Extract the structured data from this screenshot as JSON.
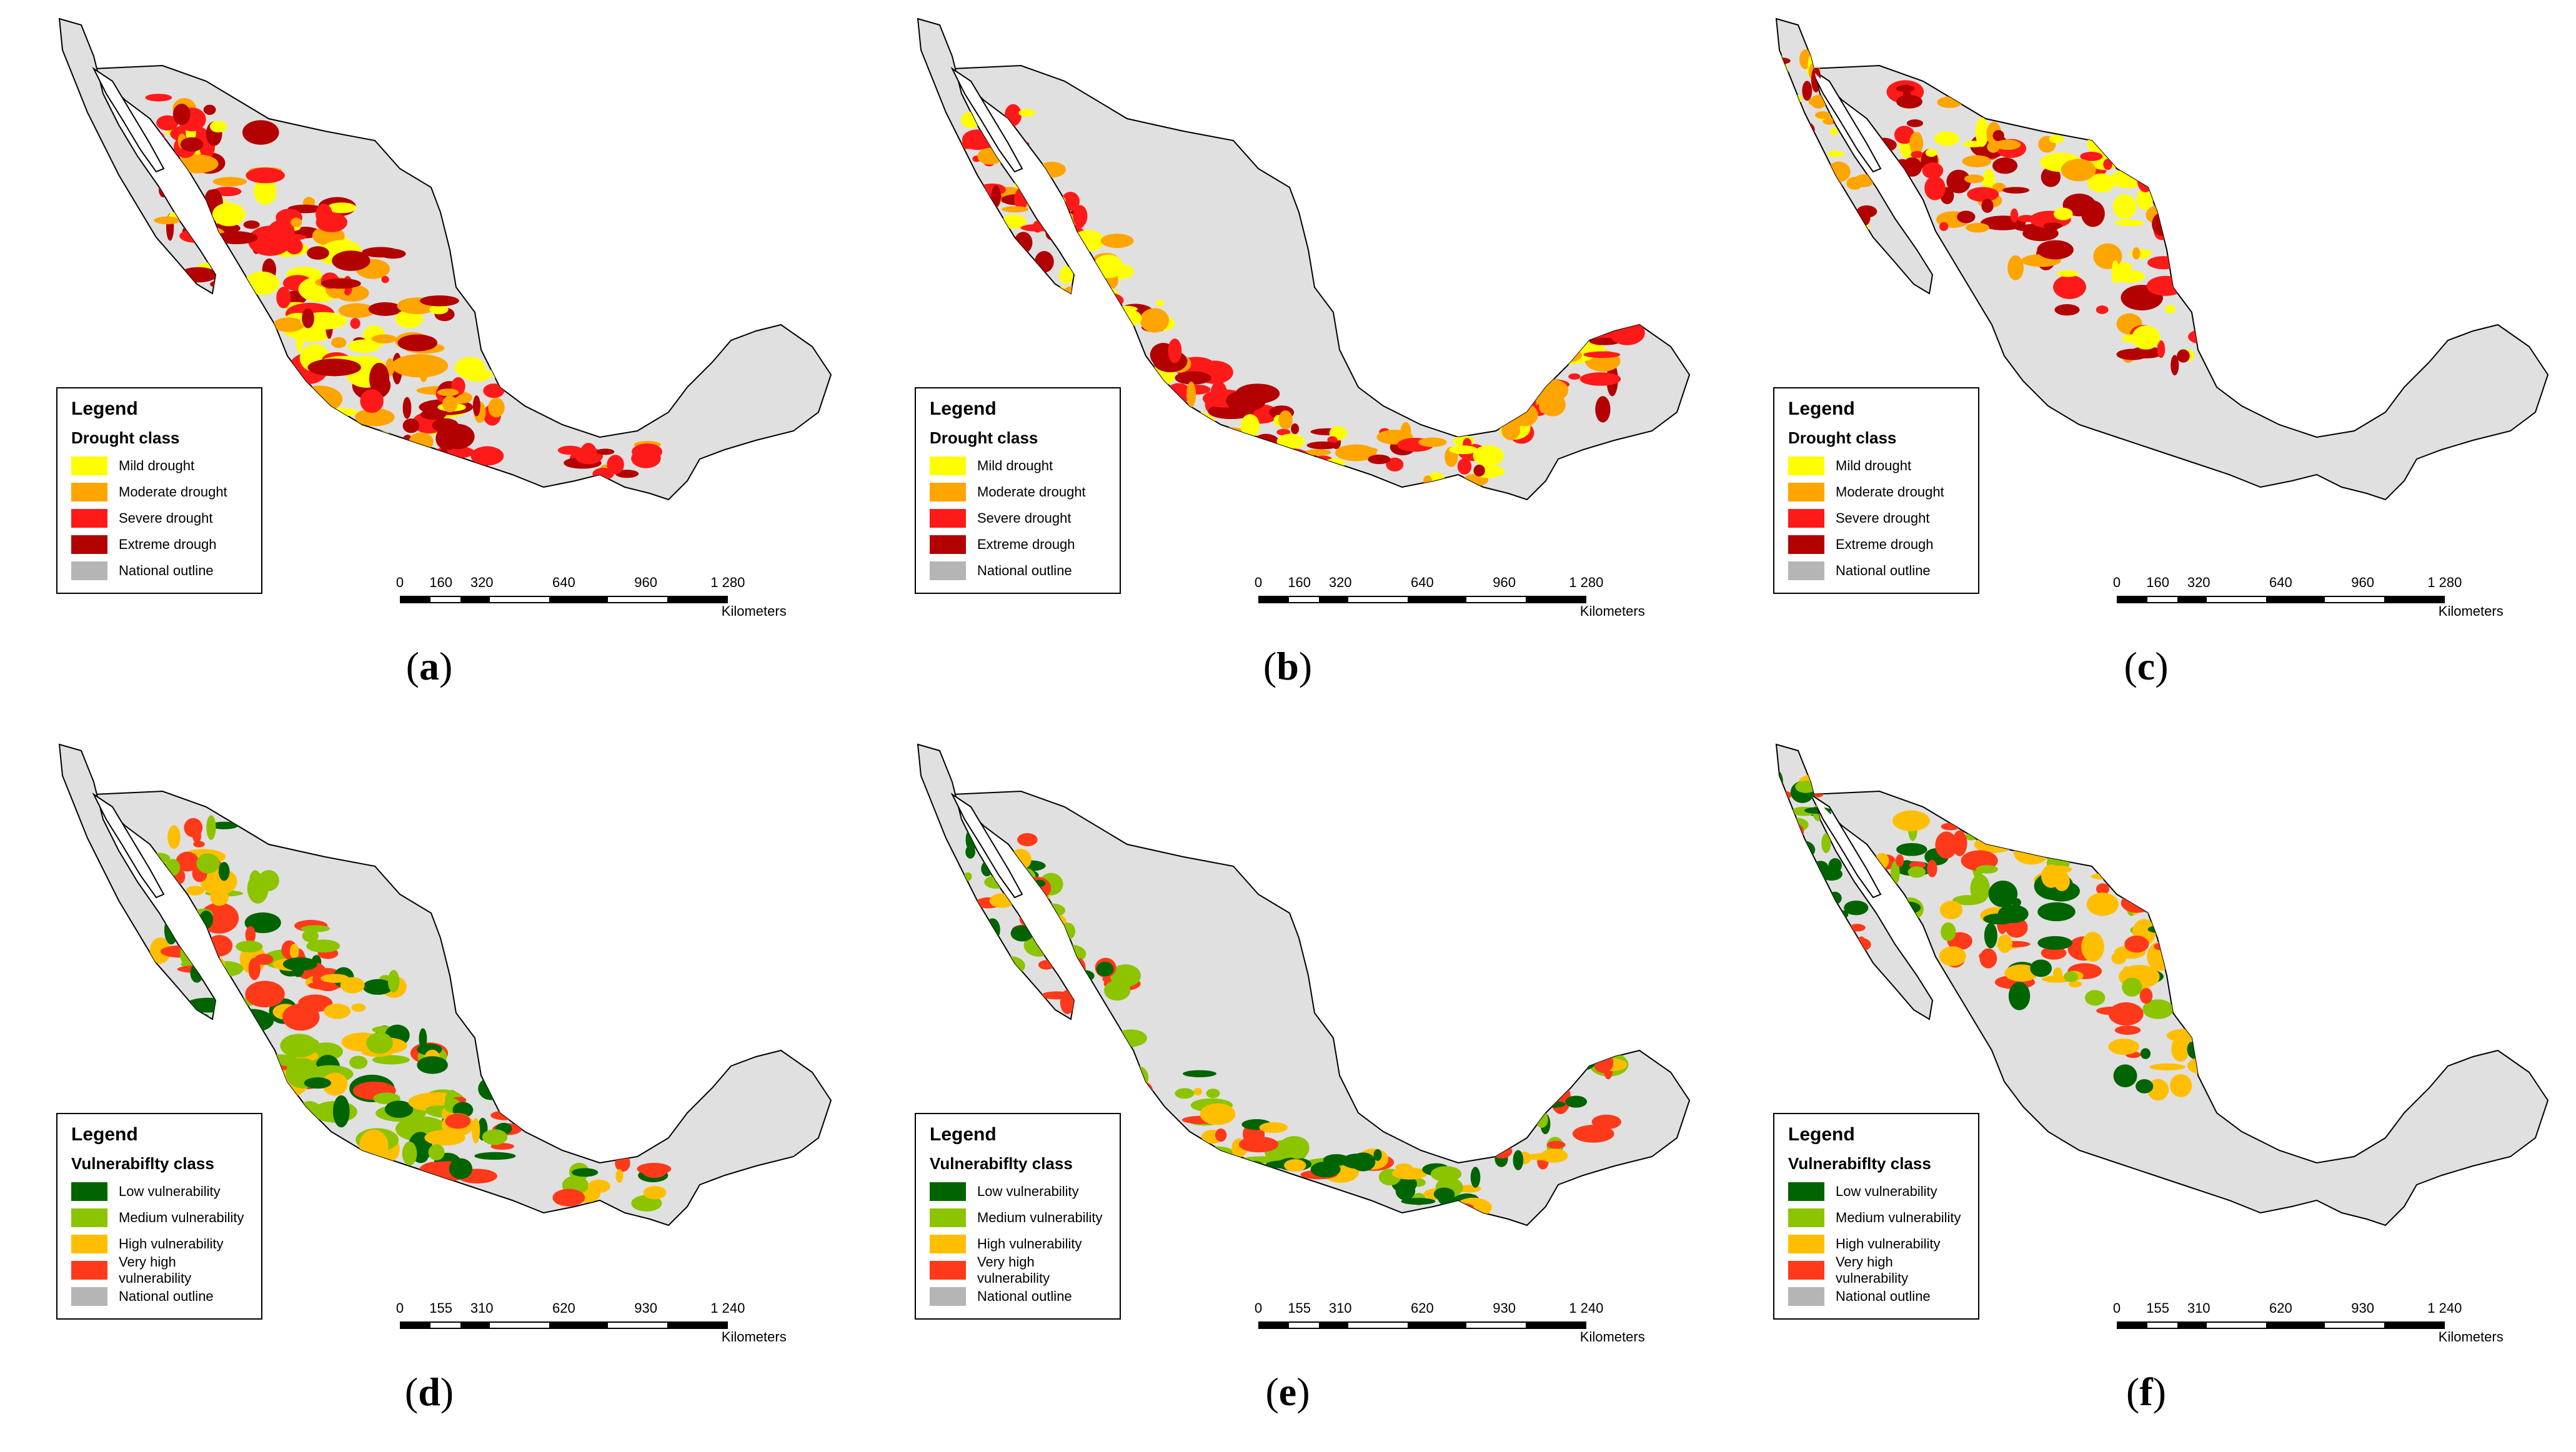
{
  "colors": {
    "land": "#e0e0e0",
    "outline": "#000000",
    "mild": "#ffff00",
    "moderate": "#ffa500",
    "severe": "#ff1a1a",
    "extreme": "#b30000",
    "national": "#b5b5b5",
    "low": "#006400",
    "medium": "#8cc400",
    "high": "#ffbf00",
    "very_high": "#ff3a1a"
  },
  "panels": [
    {
      "id": "a",
      "caption": "a",
      "legend": {
        "title": "Legend",
        "heading": "Drought class",
        "items": [
          {
            "label": "Mild drought",
            "color": "#ffff00"
          },
          {
            "label": "Moderate drought",
            "color": "#ffa500"
          },
          {
            "label": "Severe drought",
            "color": "#ff1a1a"
          },
          {
            "label": "Extreme drough",
            "color": "#b30000"
          },
          {
            "label": "National outline",
            "color": "#b5b5b5"
          }
        ]
      },
      "scale": {
        "ticks": [
          "0",
          "160",
          "320",
          "640",
          "960",
          "1 280"
        ],
        "unit": "Kilometers"
      },
      "classes": [
        "mild",
        "moderate",
        "severe",
        "extreme"
      ],
      "pattern": "west"
    },
    {
      "id": "b",
      "caption": "b",
      "legend": {
        "title": "Legend",
        "heading": "Drought class",
        "items": [
          {
            "label": "Mild drought",
            "color": "#ffff00"
          },
          {
            "label": "Moderate drought",
            "color": "#ffa500"
          },
          {
            "label": "Severe drought",
            "color": "#ff1a1a"
          },
          {
            "label": "Extreme drough",
            "color": "#b30000"
          },
          {
            "label": "National outline",
            "color": "#b5b5b5"
          }
        ]
      },
      "scale": {
        "ticks": [
          "0",
          "160",
          "320",
          "640",
          "960",
          "1 280"
        ],
        "unit": "Kilometers"
      },
      "classes": [
        "mild",
        "moderate",
        "severe",
        "extreme"
      ],
      "pattern": "coast"
    },
    {
      "id": "c",
      "caption": "c",
      "legend": {
        "title": "Legend",
        "heading": "Drought class",
        "items": [
          {
            "label": "Mild drought",
            "color": "#ffff00"
          },
          {
            "label": "Moderate drought",
            "color": "#ffa500"
          },
          {
            "label": "Severe drought",
            "color": "#ff1a1a"
          },
          {
            "label": "Extreme drough",
            "color": "#b30000"
          },
          {
            "label": "National outline",
            "color": "#b5b5b5"
          }
        ]
      },
      "scale": {
        "ticks": [
          "0",
          "160",
          "320",
          "640",
          "960",
          "1 280"
        ],
        "unit": "Kilometers"
      },
      "classes": [
        "mild",
        "moderate",
        "severe",
        "extreme"
      ],
      "pattern": "north"
    },
    {
      "id": "d",
      "caption": "d",
      "legend": {
        "title": "Legend",
        "heading": "Vulnerabiflty class",
        "items": [
          {
            "label": "Low vulnerability",
            "color": "#006400"
          },
          {
            "label": "Medium vulnerability",
            "color": "#8cc400"
          },
          {
            "label": "High vulnerability",
            "color": "#ffbf00"
          },
          {
            "label": "Very high vulnerability",
            "color": "#ff3a1a"
          },
          {
            "label": "National outline",
            "color": "#b5b5b5"
          }
        ]
      },
      "scale": {
        "ticks": [
          "0",
          "155",
          "310",
          "620",
          "930",
          "1 240"
        ],
        "unit": "Kilometers"
      },
      "classes": [
        "low",
        "medium",
        "high",
        "very_high"
      ],
      "pattern": "west"
    },
    {
      "id": "e",
      "caption": "e",
      "legend": {
        "title": "Legend",
        "heading": "Vulnerabiflty class",
        "items": [
          {
            "label": "Low vulnerability",
            "color": "#006400"
          },
          {
            "label": "Medium vulnerability",
            "color": "#8cc400"
          },
          {
            "label": "High vulnerability",
            "color": "#ffbf00"
          },
          {
            "label": "Very high vulnerability",
            "color": "#ff3a1a"
          },
          {
            "label": "National outline",
            "color": "#b5b5b5"
          }
        ]
      },
      "scale": {
        "ticks": [
          "0",
          "155",
          "310",
          "620",
          "930",
          "1 240"
        ],
        "unit": "Kilometers"
      },
      "classes": [
        "low",
        "medium",
        "high",
        "very_high"
      ],
      "pattern": "coast"
    },
    {
      "id": "f",
      "caption": "f",
      "legend": {
        "title": "Legend",
        "heading": "Vulnerabiflty class",
        "items": [
          {
            "label": "Low vulnerability",
            "color": "#006400"
          },
          {
            "label": "Medium vulnerability",
            "color": "#8cc400"
          },
          {
            "label": "High vulnerability",
            "color": "#ffbf00"
          },
          {
            "label": "Very high vulnerability",
            "color": "#ff3a1a"
          },
          {
            "label": "National outline",
            "color": "#b5b5b5"
          }
        ]
      },
      "scale": {
        "ticks": [
          "0",
          "155",
          "310",
          "620",
          "930",
          "1 240"
        ],
        "unit": "Kilometers"
      },
      "classes": [
        "low",
        "medium",
        "high",
        "very_high"
      ],
      "pattern": "north"
    }
  ]
}
